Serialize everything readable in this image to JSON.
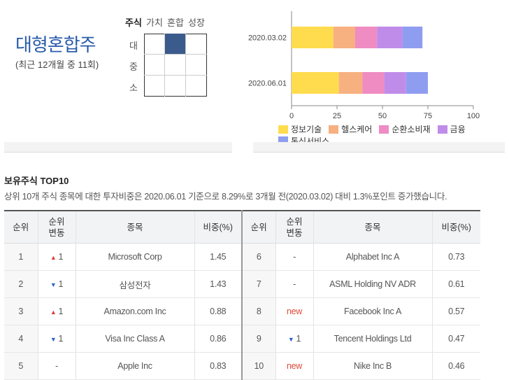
{
  "style": {
    "title": "대형혼합주",
    "subtitle": "(최근 12개월 중 11회)",
    "columns": [
      "주식",
      "가치",
      "혼합",
      "성장"
    ],
    "rows": [
      "대",
      "중",
      "소"
    ],
    "active": {
      "row": 0,
      "col": 1
    }
  },
  "chart_data": {
    "type": "bar",
    "orientation": "horizontal",
    "stacked": true,
    "categories": [
      "2020.03.02",
      "2020.06.01"
    ],
    "series": [
      {
        "name": "정보기술",
        "color": "#ffdc4e",
        "values": [
          23,
          26
        ]
      },
      {
        "name": "헬스케어",
        "color": "#f7b080",
        "values": [
          12,
          13
        ]
      },
      {
        "name": "순환소비재",
        "color": "#ef8cc2",
        "values": [
          12,
          12
        ]
      },
      {
        "name": "금융",
        "color": "#c08ce9",
        "values": [
          14,
          12
        ]
      },
      {
        "name": "통신서비스",
        "color": "#8f9df0",
        "values": [
          11,
          12
        ]
      }
    ],
    "xticks": [
      "0",
      "25",
      "50",
      "75",
      "100"
    ],
    "xlim": [
      0,
      100
    ],
    "legend": "bottom"
  },
  "holdings": {
    "title": "보유주식 TOP10",
    "description": "상위 10개 주식 종목에 대한 투자비중은 2020.06.01 기준으로 8.29%로 3개월 전(2020.03.02) 대비 1.3%포인트 증가했습니다.",
    "headers": {
      "rank": "순위",
      "change_line1": "순위",
      "change_line2": "변동",
      "name": "종목",
      "weight": "비중(%)"
    },
    "left": [
      {
        "rank": "1",
        "dir": "up",
        "change": "1",
        "name": "Microsoft Corp",
        "weight": "1.45"
      },
      {
        "rank": "2",
        "dir": "down",
        "change": "1",
        "name": "삼성전자",
        "weight": "1.43"
      },
      {
        "rank": "3",
        "dir": "up",
        "change": "1",
        "name": "Amazon.com Inc",
        "weight": "0.88"
      },
      {
        "rank": "4",
        "dir": "down",
        "change": "1",
        "name": "Visa Inc Class A",
        "weight": "0.86"
      },
      {
        "rank": "5",
        "dir": "none",
        "change": "-",
        "name": "Apple Inc",
        "weight": "0.83"
      }
    ],
    "right": [
      {
        "rank": "6",
        "dir": "none",
        "change": "-",
        "name": "Alphabet Inc A",
        "weight": "0.73"
      },
      {
        "rank": "7",
        "dir": "none",
        "change": "-",
        "name": "ASML Holding NV ADR",
        "weight": "0.61"
      },
      {
        "rank": "8",
        "dir": "new",
        "change": "new",
        "name": "Facebook Inc A",
        "weight": "0.57"
      },
      {
        "rank": "9",
        "dir": "down",
        "change": "1",
        "name": "Tencent Holdings Ltd",
        "weight": "0.47"
      },
      {
        "rank": "10",
        "dir": "new",
        "change": "new",
        "name": "Nike Inc B",
        "weight": "0.46"
      }
    ]
  }
}
